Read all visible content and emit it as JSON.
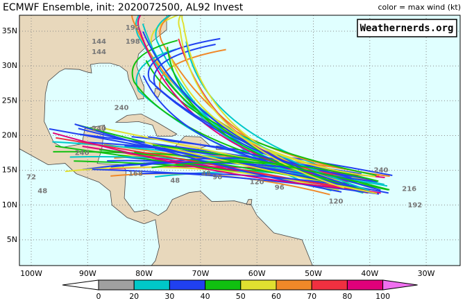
{
  "header": {
    "title": "ECMWF Ensemble, init: 2020072500, AL92 Invest",
    "legend_note": "color = max wind (kt)"
  },
  "watermark": "Weathernerds.org",
  "axes": {
    "lat_labels": [
      "35N",
      "30N",
      "25N",
      "20N",
      "15N",
      "10N",
      "5N"
    ],
    "lon_labels": [
      "100W",
      "90W",
      "80W",
      "70W",
      "60W",
      "50W",
      "40W",
      "30W"
    ]
  },
  "colorbar": {
    "ticks": [
      0,
      20,
      30,
      40,
      50,
      60,
      70,
      80,
      100
    ],
    "colors": [
      "#ffffff",
      "#a0a0a0",
      "#00c8c8",
      "#2040f0",
      "#10c010",
      "#e0e030",
      "#f08828",
      "#f03040",
      "#e0007a",
      "#f070f0"
    ]
  },
  "track_labels": [
    "192",
    "144",
    "144",
    "198",
    "240",
    "240",
    "240",
    "168",
    "48",
    "48",
    "72",
    "96",
    "96",
    "120",
    "216",
    "240",
    "192",
    "48",
    "120"
  ]
}
